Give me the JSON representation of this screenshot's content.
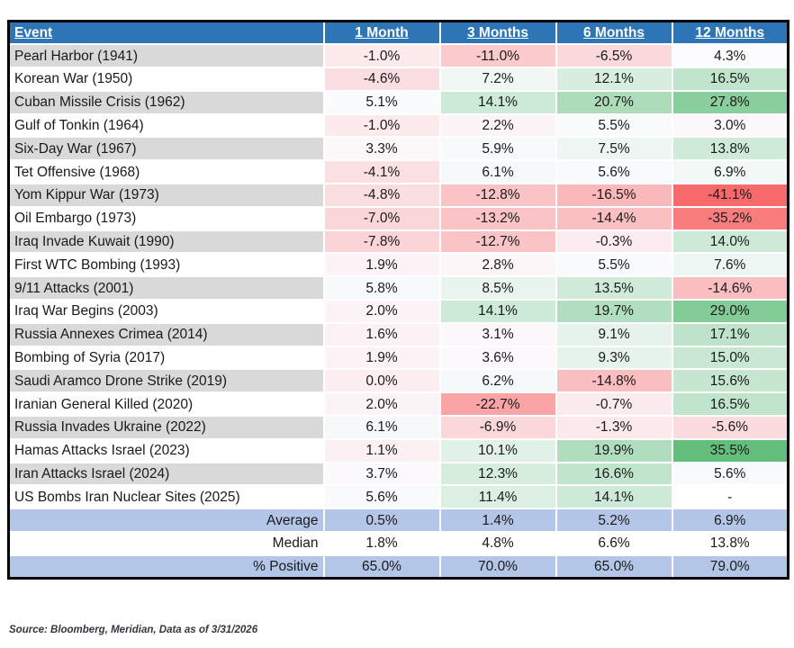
{
  "chart_data": {
    "type": "table",
    "columns": [
      "Event",
      "1 Month",
      "3 Months",
      "6 Months",
      "12 Months"
    ],
    "rows": [
      {
        "event": "Pearl Harbor (1941)",
        "values": [
          -1.0,
          -11.0,
          -6.5,
          4.3
        ]
      },
      {
        "event": "Korean War (1950)",
        "values": [
          -4.6,
          7.2,
          12.1,
          16.5
        ]
      },
      {
        "event": "Cuban Missile Crisis (1962)",
        "values": [
          5.1,
          14.1,
          20.7,
          27.8
        ]
      },
      {
        "event": "Gulf of Tonkin (1964)",
        "values": [
          -1.0,
          2.2,
          5.5,
          3.0
        ]
      },
      {
        "event": "Six-Day War (1967)",
        "values": [
          3.3,
          5.9,
          7.5,
          13.8
        ]
      },
      {
        "event": "Tet Offensive (1968)",
        "values": [
          -4.1,
          6.1,
          5.6,
          6.9
        ]
      },
      {
        "event": "Yom Kippur War (1973)",
        "values": [
          -4.8,
          -12.8,
          -16.5,
          -41.1
        ]
      },
      {
        "event": "Oil Embargo (1973)",
        "values": [
          -7.0,
          -13.2,
          -14.4,
          -35.2
        ]
      },
      {
        "event": "Iraq Invade Kuwait (1990)",
        "values": [
          -7.8,
          -12.7,
          -0.3,
          14.0
        ]
      },
      {
        "event": "First WTC Bombing (1993)",
        "values": [
          1.9,
          2.8,
          5.5,
          7.6
        ]
      },
      {
        "event": "9/11 Attacks (2001)",
        "values": [
          5.8,
          8.5,
          13.5,
          -14.6
        ]
      },
      {
        "event": "Iraq War Begins (2003)",
        "values": [
          2.0,
          14.1,
          19.7,
          29.0
        ]
      },
      {
        "event": "Russia Annexes Crimea (2014)",
        "values": [
          1.6,
          3.1,
          9.1,
          17.1
        ]
      },
      {
        "event": "Bombing of Syria (2017)",
        "values": [
          1.9,
          3.6,
          9.3,
          15.0
        ]
      },
      {
        "event": "Saudi Aramco Drone Strike (2019)",
        "values": [
          0.0,
          6.2,
          -14.8,
          15.6
        ]
      },
      {
        "event": "Iranian General Killed (2020)",
        "values": [
          2.0,
          -22.7,
          -0.7,
          16.5
        ]
      },
      {
        "event": "Russia Invades Ukraine (2022)",
        "values": [
          6.1,
          -6.9,
          -1.3,
          -5.6
        ]
      },
      {
        "event": "Hamas Attacks Israel (2023)",
        "values": [
          1.1,
          10.1,
          19.9,
          35.5
        ]
      },
      {
        "event": "Iran Attacks Israel (2024)",
        "values": [
          3.7,
          12.3,
          16.6,
          5.6
        ]
      },
      {
        "event": "US Bombs Iran Nuclear Sites (2025)",
        "values": [
          5.6,
          11.4,
          14.1,
          null
        ]
      }
    ],
    "summary_rows": [
      {
        "label": "Average",
        "values": [
          0.5,
          1.4,
          5.2,
          6.9
        ]
      },
      {
        "label": "Median",
        "values": [
          1.8,
          4.8,
          6.6,
          13.8
        ]
      },
      {
        "label": "% Positive",
        "values": [
          65.0,
          70.0,
          65.0,
          79.0
        ]
      }
    ],
    "null_display": "-",
    "value_suffix": "%"
  },
  "heatmap": {
    "min_value": -41.1,
    "mid_value": 4.7,
    "max_value": 35.5,
    "min_color": "#F8696B",
    "mid_color": "#FCFCFF",
    "max_color": "#63BE7B"
  },
  "colors": {
    "header_bg": "#2E75B6",
    "header_text": "#FFFFFF",
    "row_gray": "#D9D9D9",
    "row_white": "#FFFFFF",
    "summary_bg": "#B4C6E7",
    "outer_border": "#000000",
    "gridline": "#FFFFFF"
  },
  "source_note": "Source: Bloomberg, Meridian, Data as of 3/31/2026"
}
